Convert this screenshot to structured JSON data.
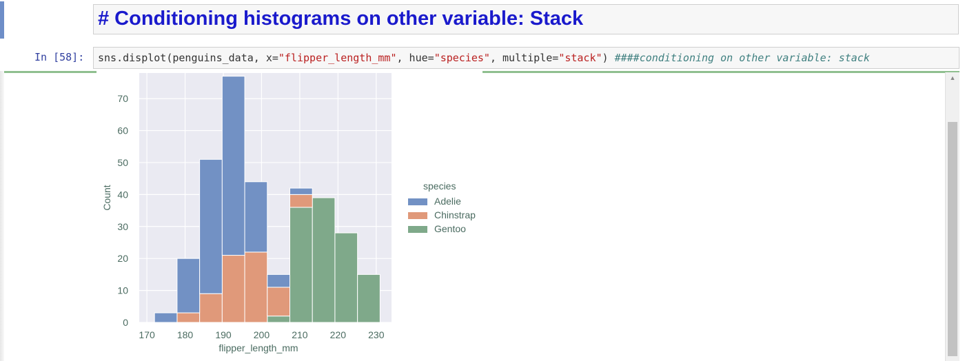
{
  "markdown_cell": {
    "heading": "# Conditioning histograms on other variable: Stack"
  },
  "code_cell": {
    "prompt": "In [58]:",
    "code_plain": "sns.displot(penguins_data, x=",
    "code_str1": "\"flipper_length_mm\"",
    "code_sep1": ", hue=",
    "code_str2": "\"species\"",
    "code_sep2": ", multiple=",
    "code_str3": "\"stack\"",
    "code_close": ")  ",
    "comment": "####conditioning on other variable: stack"
  },
  "colors": {
    "adelie": "#7291c4",
    "chinstrap": "#e0997a",
    "gentoo": "#7fa98a",
    "plot_bg": "#eaeaf2",
    "heading": "#1a1acc"
  },
  "chart_data": {
    "type": "bar",
    "stacked": true,
    "xlabel": "flipper_length_mm",
    "ylabel": "Count",
    "xlim": [
      168,
      234
    ],
    "ylim": [
      0,
      78
    ],
    "xticks": [
      170,
      180,
      190,
      200,
      210,
      220,
      230
    ],
    "yticks": [
      0,
      10,
      20,
      30,
      40,
      50,
      60,
      70
    ],
    "bin_edges": [
      172,
      177.9,
      183.8,
      189.7,
      195.6,
      201.5,
      207.4,
      213.3,
      219.2,
      225.1,
      231
    ],
    "series": [
      {
        "name": "Gentoo",
        "values": [
          0,
          0,
          0,
          0,
          0,
          2,
          36,
          39,
          28,
          15
        ]
      },
      {
        "name": "Chinstrap",
        "values": [
          0,
          3,
          9,
          21,
          22,
          9,
          4,
          0,
          0,
          0
        ]
      },
      {
        "name": "Adelie",
        "values": [
          3,
          17,
          42,
          56,
          22,
          4,
          2,
          0,
          0,
          0
        ]
      }
    ],
    "legend": {
      "title": "species",
      "entries": [
        "Adelie",
        "Chinstrap",
        "Gentoo"
      ],
      "placement": "right"
    },
    "grid": true
  }
}
